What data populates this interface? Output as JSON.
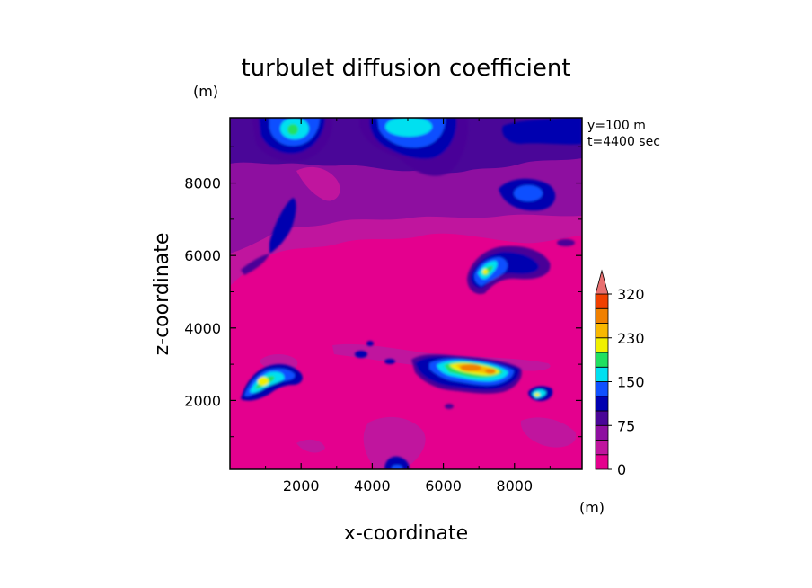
{
  "chart_data": {
    "type": "heatmap",
    "title": "turbulet diffusion coefficient",
    "xlabel": "x-coordinate",
    "ylabel": "z-coordinate",
    "x_unit": "(m)",
    "y_unit": "(m)",
    "annotations": [
      "y=100 m",
      "t=4400 sec"
    ],
    "xlim": [
      0,
      9900
    ],
    "ylim": [
      100,
      9800
    ],
    "x_ticks": [
      2000,
      4000,
      6000,
      8000
    ],
    "y_ticks": [
      2000,
      4000,
      6000,
      8000
    ],
    "x_tick_labels": [
      "2000",
      "4000",
      "6000",
      "8000"
    ],
    "y_tick_labels": [
      "2000",
      "4000",
      "6000",
      "8000"
    ],
    "colorbar": {
      "labels": [
        "0",
        "75",
        "150",
        "230",
        "320"
      ],
      "label_levels": [
        0,
        75,
        150,
        230,
        320
      ],
      "levels": [
        0,
        25,
        50,
        75,
        100,
        125,
        150,
        175,
        200,
        230,
        260,
        290,
        320
      ],
      "extend": "max",
      "colors": [
        "#e4008e",
        "#c0159e",
        "#8e0fa0",
        "#4a0698",
        "#0000b0",
        "#1050ff",
        "#00e0f0",
        "#20e060",
        "#f0f000",
        "#f8b800",
        "#f08000",
        "#f04000",
        "#e00000",
        "#e87070"
      ]
    },
    "features": [
      {
        "x": 1200,
        "z": 2500,
        "value": 200
      },
      {
        "x": 6800,
        "z": 2900,
        "value": 260
      },
      {
        "x": 7500,
        "z": 2700,
        "value": 230
      },
      {
        "x": 6900,
        "z": 5700,
        "value": 180
      },
      {
        "x": 8600,
        "z": 2200,
        "value": 170
      },
      {
        "x": 1800,
        "z": 9600,
        "value": 160
      },
      {
        "x": 5000,
        "z": 9600,
        "value": 150
      },
      {
        "x": 8300,
        "z": 7900,
        "value": 100
      },
      {
        "x": 1500,
        "z": 6700,
        "value": 90
      },
      {
        "x": 4700,
        "z": 150,
        "value": 90
      }
    ]
  }
}
